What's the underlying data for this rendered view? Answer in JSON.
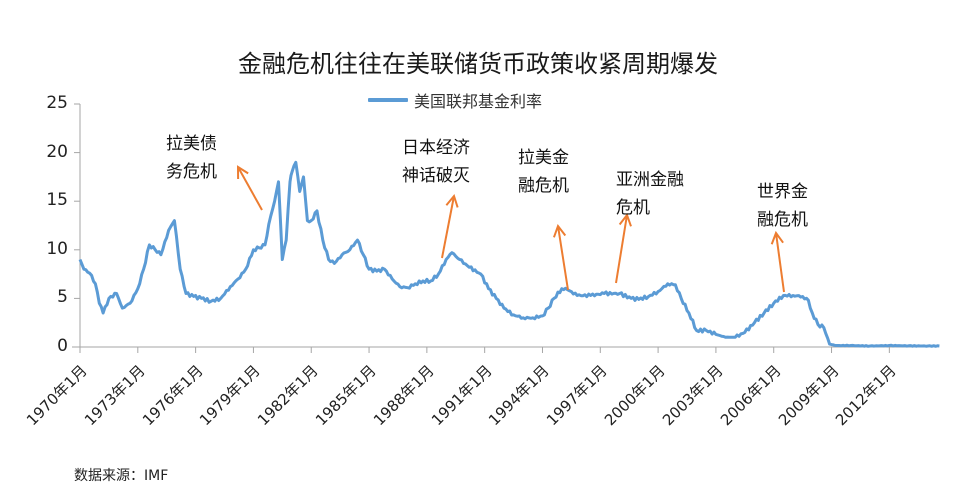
{
  "chart_data": {
    "type": "line",
    "title": "金融危机往往在美联储货币政策收紧周期爆发",
    "xlabel": "",
    "ylabel": "",
    "ylim": [
      0,
      25
    ],
    "yticks": [
      "0",
      "5",
      "10",
      "15",
      "20",
      "25"
    ],
    "xticks": [
      "1970年1月",
      "1973年1月",
      "1976年1月",
      "1979年1月",
      "1982年1月",
      "1985年1月",
      "1988年1月",
      "1991年1月",
      "1994年1月",
      "1997年1月",
      "2000年1月",
      "2003年1月",
      "2006年1月",
      "2009年1月",
      "2012年1月"
    ],
    "grid": false,
    "legend_position": "top",
    "series": [
      {
        "name": "美国联邦基金利率",
        "color": "#5b9bd5",
        "x": [
          1970.0,
          1970.2,
          1970.5,
          1970.8,
          1971.0,
          1971.2,
          1971.5,
          1971.9,
          1972.2,
          1972.6,
          1973.0,
          1973.3,
          1973.6,
          1973.9,
          1974.2,
          1974.6,
          1974.9,
          1975.2,
          1975.5,
          1975.9,
          1976.3,
          1976.8,
          1977.3,
          1977.8,
          1978.2,
          1978.6,
          1979.0,
          1979.3,
          1979.6,
          1979.9,
          1980.1,
          1980.3,
          1980.5,
          1980.7,
          1980.9,
          1981.0,
          1981.2,
          1981.4,
          1981.6,
          1981.8,
          1982.0,
          1982.3,
          1982.6,
          1982.9,
          1983.2,
          1983.6,
          1984.0,
          1984.4,
          1984.7,
          1985.0,
          1985.4,
          1985.8,
          1986.2,
          1986.6,
          1987.0,
          1987.4,
          1987.8,
          1988.2,
          1988.6,
          1989.0,
          1989.3,
          1989.7,
          1990.2,
          1990.8,
          1991.2,
          1991.6,
          1992.0,
          1992.5,
          1993.0,
          1993.5,
          1994.0,
          1994.3,
          1994.6,
          1995.0,
          1995.3,
          1995.8,
          1996.5,
          1997.2,
          1998.0,
          1998.6,
          1999.0,
          1999.5,
          2000.0,
          2000.5,
          2000.9,
          2001.2,
          2001.6,
          2002.0,
          2002.5,
          2003.0,
          2003.5,
          2004.0,
          2004.5,
          2005.0,
          2005.5,
          2006.0,
          2006.5,
          2007.0,
          2007.5,
          2007.8,
          2008.0,
          2008.3,
          2008.6,
          2008.9,
          2009.2,
          2010.0,
          2011.0,
          2012.0,
          2013.0,
          2014.0,
          2014.6
        ],
        "values": [
          9.0,
          8.0,
          7.6,
          6.5,
          4.5,
          3.5,
          5.0,
          5.5,
          4.0,
          4.5,
          6.0,
          8.0,
          10.5,
          10.0,
          9.5,
          12.0,
          13.0,
          8.0,
          5.5,
          5.2,
          5.0,
          4.7,
          5.0,
          6.2,
          7.0,
          8.0,
          10.0,
          10.2,
          10.5,
          13.5,
          15.0,
          17.0,
          9.0,
          11.0,
          17.0,
          18.0,
          19.0,
          16.0,
          17.5,
          13.0,
          13.0,
          14.0,
          11.0,
          9.0,
          8.6,
          9.5,
          10.0,
          11.0,
          9.5,
          8.0,
          7.8,
          8.0,
          7.0,
          6.2,
          6.1,
          6.5,
          6.8,
          6.8,
          7.5,
          9.0,
          9.7,
          9.0,
          8.2,
          7.5,
          6.0,
          5.0,
          4.0,
          3.3,
          3.0,
          3.0,
          3.2,
          4.0,
          5.0,
          6.0,
          5.9,
          5.3,
          5.3,
          5.5,
          5.5,
          5.0,
          4.9,
          5.2,
          5.7,
          6.5,
          6.4,
          5.0,
          3.5,
          1.7,
          1.7,
          1.3,
          1.0,
          1.0,
          1.5,
          2.5,
          3.5,
          4.5,
          5.3,
          5.3,
          5.2,
          4.8,
          3.5,
          2.3,
          2.0,
          0.3,
          0.15,
          0.15,
          0.1,
          0.15,
          0.12,
          0.1,
          0.1
        ]
      }
    ],
    "annotations": [
      {
        "text": "拉美债\n务危机",
        "year": 1979.8
      },
      {
        "text": "日本经济\n神话破灭",
        "year": 1989.3
      },
      {
        "text": "拉美金\n融危机",
        "year": 1995.0
      },
      {
        "text": "亚洲金融\n危机",
        "year": 1997.4
      },
      {
        "text": "世界金\n融危机",
        "year": 2006.3
      }
    ]
  },
  "title": "金融危机往往在美联储货币政策收紧周期爆发",
  "legend": {
    "label": "美国联邦基金利率",
    "color": "#5b9bd5"
  },
  "annotation_color": "#ed7d31",
  "source": "数据来源：IMF"
}
